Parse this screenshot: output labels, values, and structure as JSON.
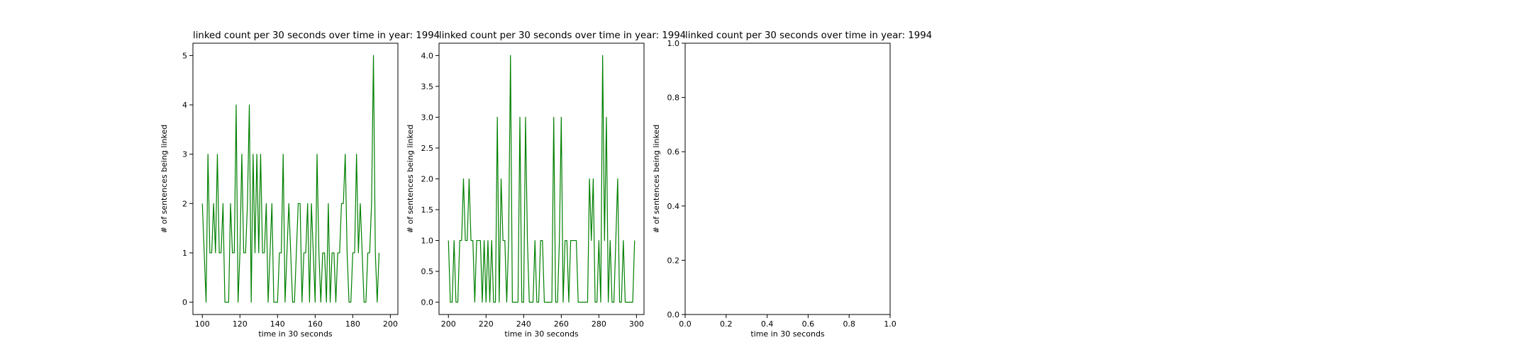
{
  "chart_data": [
    {
      "type": "line",
      "title": "linked count per 30 seconds over time in year: 1994",
      "xlabel": "time in 30 seconds",
      "ylabel": "# of sentences being linked",
      "xlim": [
        95,
        204
      ],
      "ylim": [
        -0.25,
        5.25
      ],
      "xticks": [
        100,
        120,
        140,
        160,
        180,
        200
      ],
      "yticks": [
        0,
        1,
        2,
        3,
        4,
        5
      ],
      "grid": false,
      "line_color": "#008000",
      "x_start": 100,
      "values": [
        2,
        1,
        0,
        3,
        1,
        1,
        2,
        1,
        3,
        1,
        1,
        2,
        0,
        0,
        0,
        2,
        1,
        1,
        4,
        0,
        1,
        3,
        1,
        1,
        2,
        4,
        0,
        3,
        1,
        3,
        1,
        3,
        1,
        1,
        2,
        0,
        1,
        2,
        0,
        0,
        0,
        1,
        1,
        3,
        0,
        1,
        2,
        1,
        0,
        0,
        1,
        2,
        2,
        0,
        1,
        1,
        2,
        0,
        2,
        1,
        0,
        3,
        1,
        0,
        1,
        1,
        0,
        2,
        0,
        1,
        1,
        0,
        1,
        1,
        2,
        2,
        3,
        1,
        0,
        0,
        1,
        1,
        3,
        1,
        2,
        1,
        0,
        0,
        1,
        1,
        2,
        5,
        1,
        0,
        1
      ]
    },
    {
      "type": "line",
      "title": "linked count per 30 seconds over time in year: 1994",
      "xlabel": "time in 30 seconds",
      "ylabel": "# of sentences being linked",
      "xlim": [
        195,
        304
      ],
      "ylim": [
        -0.2,
        4.2
      ],
      "xticks": [
        200,
        220,
        240,
        260,
        280,
        300
      ],
      "yticks": [
        0.0,
        0.5,
        1.0,
        1.5,
        2.0,
        2.5,
        3.0,
        3.5,
        4.0
      ],
      "grid": false,
      "line_color": "#008000",
      "x_start": 200,
      "values": [
        1,
        0,
        0,
        1,
        0,
        0,
        1,
        1,
        2,
        1,
        1,
        2,
        1,
        1,
        0,
        1,
        1,
        1,
        0,
        1,
        0,
        1,
        0,
        1,
        0,
        0,
        3,
        0,
        2,
        1,
        1,
        0,
        1,
        4,
        0,
        0,
        0,
        0,
        3,
        0,
        0,
        3,
        1,
        0,
        0,
        0,
        1,
        0,
        0,
        1,
        1,
        0,
        0,
        0,
        0,
        0,
        3,
        0,
        0,
        1,
        3,
        0,
        1,
        1,
        0,
        1,
        1,
        1,
        1,
        0,
        0,
        0,
        0,
        0,
        0,
        2,
        1,
        2,
        0,
        0,
        1,
        0,
        4,
        1,
        3,
        0,
        1,
        0,
        0,
        1,
        2,
        0,
        0,
        1,
        0,
        0,
        0,
        0,
        0,
        1
      ]
    },
    {
      "type": "line",
      "title": "linked count per 30 seconds over time in year: 1994",
      "xlabel": "time in 30 seconds",
      "ylabel": "# of sentences being linked",
      "xlim": [
        0.0,
        1.0
      ],
      "ylim": [
        0.0,
        1.0
      ],
      "xticks": [
        0.0,
        0.2,
        0.4,
        0.6,
        0.8,
        1.0
      ],
      "yticks": [
        0.0,
        0.2,
        0.4,
        0.6,
        0.8,
        1.0
      ],
      "grid": false,
      "line_color": "#008000",
      "x_start": null,
      "values": []
    }
  ]
}
